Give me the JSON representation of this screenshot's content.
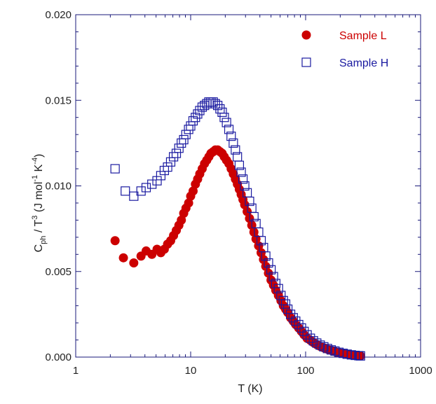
{
  "chart_data": {
    "type": "scatter",
    "xscale": "log",
    "xlim": [
      1,
      1000
    ],
    "ylim": [
      0,
      0.02
    ],
    "x_ticks": [
      "1",
      "10",
      "100",
      "1000"
    ],
    "y_ticks": [
      "0.000",
      "0.005",
      "0.010",
      "0.015",
      "0.020"
    ],
    "xlabel": "T (K)",
    "ylabel": {
      "base1": "C",
      "sub1": "ph",
      "mid": " / T",
      "sup1": "3",
      "mid2": " (J mol",
      "sup2": "-1",
      "mid3": " K",
      "sup3": "-4",
      "end": ")"
    },
    "grid": false,
    "legend_position": "top-right",
    "axis_color": "#1a1a7a",
    "series": [
      {
        "name": "Sample L",
        "marker": "filled-circle",
        "color": "#cc0000",
        "points": [
          [
            2.2,
            0.0068
          ],
          [
            2.6,
            0.0058
          ],
          [
            3.2,
            0.0055
          ],
          [
            3.7,
            0.0059
          ],
          [
            4.1,
            0.0062
          ],
          [
            4.6,
            0.006
          ],
          [
            5.1,
            0.0063
          ],
          [
            5.5,
            0.0061
          ],
          [
            5.9,
            0.0063
          ],
          [
            6.3,
            0.0066
          ],
          [
            6.7,
            0.0068
          ],
          [
            7.1,
            0.0071
          ],
          [
            7.5,
            0.0074
          ],
          [
            7.9,
            0.0077
          ],
          [
            8.3,
            0.008
          ],
          [
            8.7,
            0.0084
          ],
          [
            9.1,
            0.0087
          ],
          [
            9.6,
            0.009
          ],
          [
            10.0,
            0.0094
          ],
          [
            10.5,
            0.0097
          ],
          [
            11.0,
            0.0101
          ],
          [
            11.5,
            0.0104
          ],
          [
            12.0,
            0.0107
          ],
          [
            12.6,
            0.011
          ],
          [
            13.2,
            0.0113
          ],
          [
            13.8,
            0.0115
          ],
          [
            14.4,
            0.0117
          ],
          [
            15.0,
            0.0119
          ],
          [
            15.7,
            0.012
          ],
          [
            16.4,
            0.0121
          ],
          [
            17.2,
            0.0121
          ],
          [
            18.0,
            0.012
          ],
          [
            18.8,
            0.0119
          ],
          [
            19.6,
            0.0117
          ],
          [
            20.5,
            0.0115
          ],
          [
            21.5,
            0.0113
          ],
          [
            22.5,
            0.011
          ],
          [
            23.5,
            0.0107
          ],
          [
            24.5,
            0.0104
          ],
          [
            25.5,
            0.0101
          ],
          [
            26.5,
            0.0098
          ],
          [
            27.5,
            0.0095
          ],
          [
            28.5,
            0.0092
          ],
          [
            29.5,
            0.0089
          ],
          [
            31.0,
            0.0085
          ],
          [
            32.5,
            0.0081
          ],
          [
            34.0,
            0.0077
          ],
          [
            35.5,
            0.0073
          ],
          [
            37.0,
            0.0069
          ],
          [
            39.0,
            0.0065
          ],
          [
            41.0,
            0.0061
          ],
          [
            43.0,
            0.0057
          ],
          [
            45.0,
            0.0053
          ],
          [
            47.5,
            0.0049
          ],
          [
            50.0,
            0.0045
          ],
          [
            52.5,
            0.0042
          ],
          [
            55.0,
            0.0039
          ],
          [
            58.0,
            0.0036
          ],
          [
            61.0,
            0.0033
          ],
          [
            64.0,
            0.003
          ],
          [
            67.0,
            0.0028
          ],
          [
            70.0,
            0.0026
          ],
          [
            74.0,
            0.0023
          ],
          [
            78.0,
            0.0021
          ],
          [
            82.0,
            0.0019
          ],
          [
            87.0,
            0.0017
          ],
          [
            92.0,
            0.0015
          ],
          [
            97.0,
            0.0013
          ],
          [
            103.0,
            0.0011
          ],
          [
            110.0,
            0.00098
          ],
          [
            117.0,
            0.00085
          ],
          [
            125.0,
            0.00073
          ],
          [
            134.0,
            0.00063
          ],
          [
            144.0,
            0.00054
          ],
          [
            155.0,
            0.00046
          ],
          [
            167.0,
            0.00039
          ],
          [
            180.0,
            0.00032
          ],
          [
            195.0,
            0.00026
          ],
          [
            212.0,
            0.00021
          ],
          [
            230.0,
            0.00017
          ],
          [
            250.0,
            0.00013
          ],
          [
            270.0,
            0.0001
          ],
          [
            290.0,
            8e-05
          ],
          [
            300.0,
            7e-05
          ]
        ]
      },
      {
        "name": "Sample H",
        "marker": "open-square",
        "color": "#1a1aa0",
        "points": [
          [
            2.2,
            0.011
          ],
          [
            2.7,
            0.0097
          ],
          [
            3.2,
            0.0094
          ],
          [
            3.7,
            0.0097
          ],
          [
            4.1,
            0.0099
          ],
          [
            4.6,
            0.0101
          ],
          [
            5.1,
            0.0103
          ],
          [
            5.5,
            0.0106
          ],
          [
            5.9,
            0.0109
          ],
          [
            6.3,
            0.0111
          ],
          [
            6.7,
            0.0114
          ],
          [
            7.1,
            0.0117
          ],
          [
            7.5,
            0.0119
          ],
          [
            7.9,
            0.0122
          ],
          [
            8.3,
            0.0125
          ],
          [
            8.7,
            0.0127
          ],
          [
            9.1,
            0.013
          ],
          [
            9.6,
            0.0133
          ],
          [
            10.0,
            0.0135
          ],
          [
            10.5,
            0.0138
          ],
          [
            11.0,
            0.014
          ],
          [
            11.5,
            0.0142
          ],
          [
            12.0,
            0.0144
          ],
          [
            12.6,
            0.0146
          ],
          [
            13.2,
            0.0147
          ],
          [
            13.8,
            0.0148
          ],
          [
            14.4,
            0.0149
          ],
          [
            15.0,
            0.0149
          ],
          [
            15.7,
            0.0149
          ],
          [
            16.4,
            0.0148
          ],
          [
            17.2,
            0.0147
          ],
          [
            18.0,
            0.0145
          ],
          [
            18.8,
            0.0143
          ],
          [
            19.6,
            0.014
          ],
          [
            20.5,
            0.0137
          ],
          [
            21.5,
            0.0133
          ],
          [
            22.5,
            0.0129
          ],
          [
            23.5,
            0.0125
          ],
          [
            24.5,
            0.0121
          ],
          [
            25.5,
            0.0117
          ],
          [
            26.5,
            0.0112
          ],
          [
            27.5,
            0.0108
          ],
          [
            28.5,
            0.0104
          ],
          [
            29.5,
            0.01
          ],
          [
            31.0,
            0.0096
          ],
          [
            32.5,
            0.0091
          ],
          [
            34.0,
            0.0087
          ],
          [
            35.5,
            0.0082
          ],
          [
            37.0,
            0.0078
          ],
          [
            39.0,
            0.0073
          ],
          [
            41.0,
            0.0068
          ],
          [
            43.0,
            0.0064
          ],
          [
            45.0,
            0.0059
          ],
          [
            47.5,
            0.0055
          ],
          [
            50.0,
            0.0051
          ],
          [
            52.5,
            0.0047
          ],
          [
            55.0,
            0.0043
          ],
          [
            58.0,
            0.004
          ],
          [
            61.0,
            0.0036
          ],
          [
            64.0,
            0.0033
          ],
          [
            67.0,
            0.0031
          ],
          [
            70.0,
            0.0028
          ],
          [
            74.0,
            0.0025
          ],
          [
            78.0,
            0.0023
          ],
          [
            82.0,
            0.0021
          ],
          [
            87.0,
            0.0019
          ],
          [
            92.0,
            0.0017
          ],
          [
            97.0,
            0.0015
          ],
          [
            103.0,
            0.0013
          ],
          [
            110.0,
            0.0011
          ],
          [
            117.0,
            0.00095
          ],
          [
            125.0,
            0.00082
          ],
          [
            134.0,
            0.0007
          ],
          [
            144.0,
            0.0006
          ],
          [
            155.0,
            0.0005
          ],
          [
            167.0,
            0.00042
          ],
          [
            180.0,
            0.00035
          ],
          [
            195.0,
            0.00028
          ],
          [
            212.0,
            0.00022
          ],
          [
            230.0,
            0.00017
          ],
          [
            250.0,
            0.00013
          ],
          [
            270.0,
            0.0001
          ],
          [
            290.0,
            8e-05
          ],
          [
            300.0,
            7e-05
          ]
        ]
      }
    ]
  }
}
